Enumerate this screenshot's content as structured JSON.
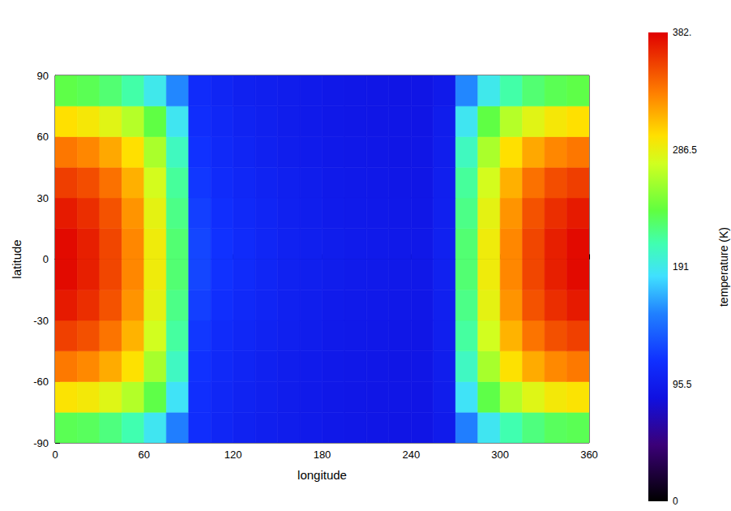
{
  "chart_data": {
    "type": "heatmap",
    "x_label": "longitude",
    "y_label": "latitude",
    "xlim": [
      0,
      360
    ],
    "xticks": [
      0,
      60,
      120,
      180,
      240,
      300,
      360
    ],
    "ylim": [
      -90,
      90
    ],
    "yticks": [
      -90,
      -60,
      -30,
      0,
      30,
      60,
      90
    ],
    "grid": false,
    "lon_edges": [
      0,
      15,
      30,
      45,
      60,
      75,
      90,
      105,
      120,
      135,
      150,
      165,
      180,
      195,
      210,
      225,
      240,
      255,
      270,
      285,
      300,
      315,
      330,
      345,
      360
    ],
    "lat_edges": [
      -90,
      -75,
      -60,
      -45,
      -30,
      -15,
      0,
      15,
      30,
      45,
      60,
      75,
      90
    ],
    "temperature": [
      [
        232,
        230,
        222,
        210,
        188,
        152,
        112,
        105,
        101,
        98,
        96,
        94,
        92,
        91,
        90,
        89,
        89,
        95,
        152,
        188,
        210,
        222,
        230,
        232
      ],
      [
        296,
        292,
        282,
        265,
        235,
        186,
        113,
        106,
        102,
        99,
        96,
        94,
        92,
        91,
        90,
        90,
        89,
        96,
        186,
        235,
        265,
        282,
        292,
        296
      ],
      [
        335,
        329,
        317,
        297,
        261,
        204,
        115,
        108,
        104,
        100,
        97,
        95,
        93,
        92,
        91,
        90,
        90,
        97,
        204,
        261,
        297,
        317,
        329,
        335
      ],
      [
        357,
        351,
        337,
        314,
        276,
        214,
        118,
        110,
        106,
        102,
        99,
        96,
        94,
        93,
        92,
        91,
        90,
        98,
        214,
        276,
        314,
        337,
        351,
        357
      ],
      [
        372,
        364,
        350,
        325,
        285,
        220,
        122,
        113,
        108,
        104,
        100,
        97,
        95,
        94,
        93,
        92,
        91,
        99,
        220,
        285,
        325,
        350,
        364,
        372
      ],
      [
        378,
        370,
        355,
        330,
        290,
        225,
        125,
        115,
        110,
        105,
        101,
        98,
        96,
        95,
        94,
        93,
        92,
        100,
        225,
        290,
        330,
        355,
        370,
        378
      ],
      [
        378,
        370,
        355,
        330,
        290,
        225,
        125,
        115,
        110,
        105,
        101,
        98,
        96,
        95,
        94,
        93,
        92,
        100,
        225,
        290,
        330,
        355,
        370,
        378
      ],
      [
        372,
        364,
        350,
        325,
        285,
        220,
        122,
        113,
        108,
        104,
        100,
        97,
        95,
        94,
        93,
        92,
        91,
        99,
        220,
        285,
        325,
        350,
        364,
        372
      ],
      [
        358,
        352,
        338,
        315,
        277,
        215,
        118,
        110,
        106,
        102,
        99,
        96,
        94,
        93,
        92,
        91,
        90,
        98,
        215,
        277,
        315,
        338,
        352,
        358
      ],
      [
        336,
        330,
        318,
        298,
        262,
        205,
        115,
        108,
        104,
        100,
        97,
        95,
        93,
        92,
        91,
        90,
        90,
        97,
        205,
        262,
        298,
        318,
        330,
        336
      ],
      [
        298,
        293,
        283,
        266,
        236,
        188,
        112,
        106,
        102,
        99,
        96,
        94,
        92,
        91,
        90,
        90,
        89,
        96,
        188,
        236,
        266,
        283,
        293,
        298
      ],
      [
        235,
        232,
        225,
        212,
        190,
        155,
        110,
        104,
        100,
        98,
        96,
        94,
        92,
        91,
        90,
        89,
        89,
        94,
        155,
        190,
        212,
        225,
        232,
        235
      ]
    ],
    "colorbar": {
      "title": "temperature (K)",
      "range": [
        0,
        382
      ],
      "ticks": [
        0,
        95.5,
        191,
        286.5,
        {
          "value": 382,
          "label": "382."
        }
      ]
    }
  }
}
